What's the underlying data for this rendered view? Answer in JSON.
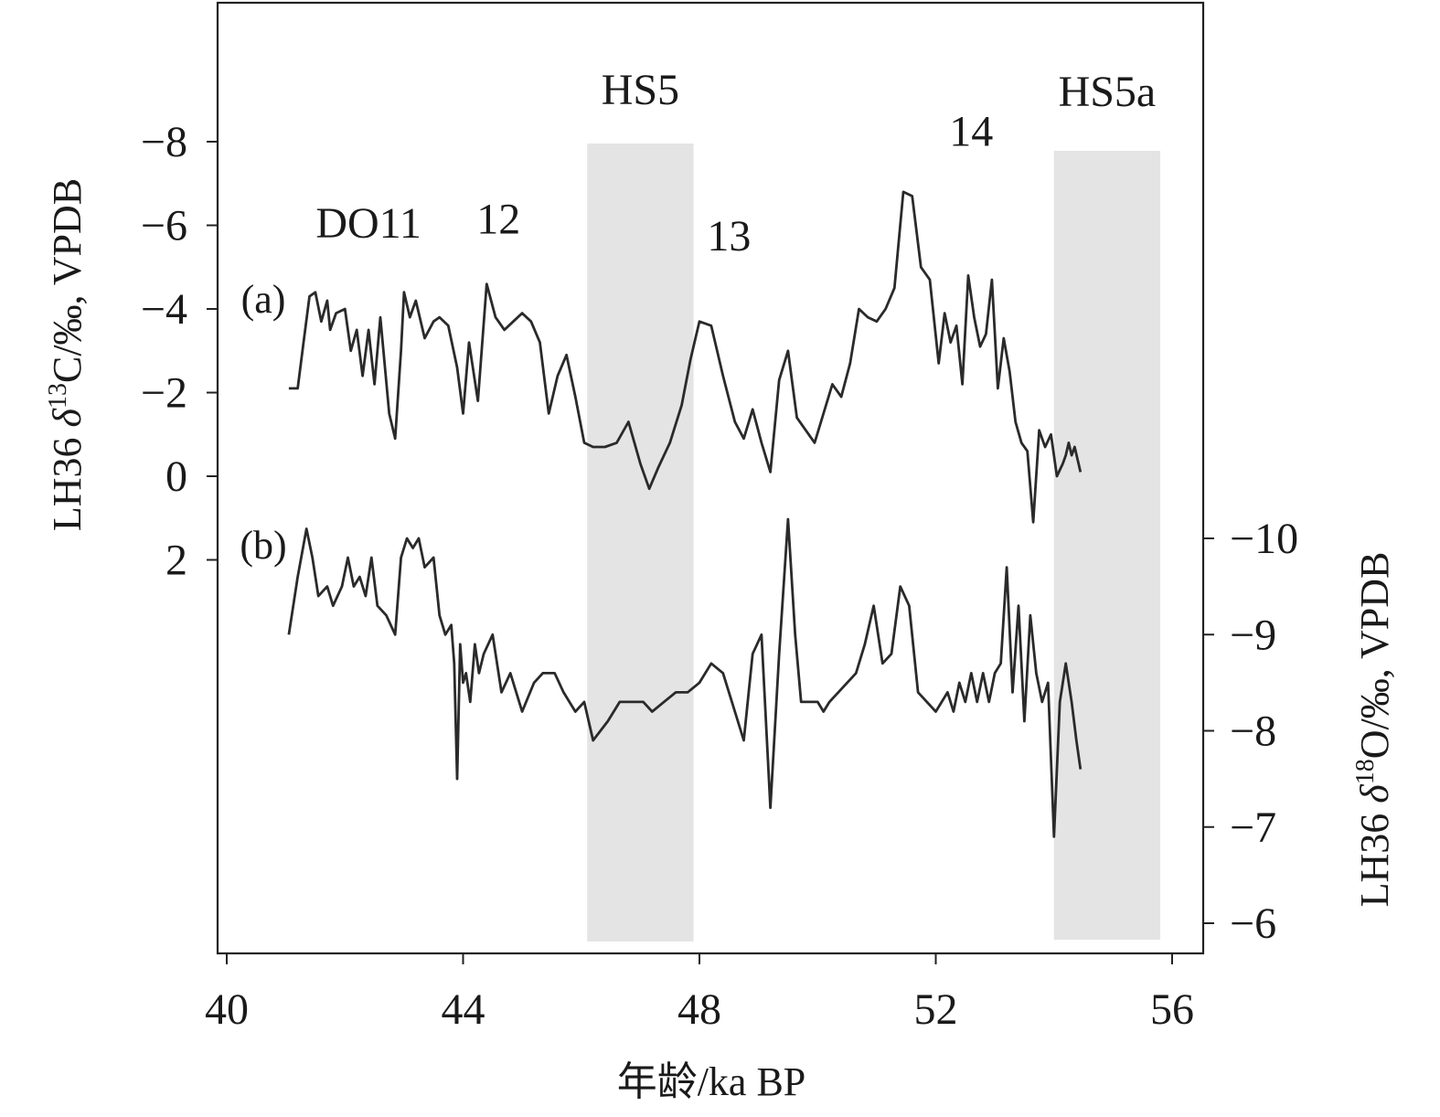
{
  "chart_data": {
    "type": "line",
    "xlabel": "年龄/ka BP",
    "xlim": [
      40,
      56
    ],
    "x_ticks": [
      40,
      44,
      48,
      52,
      56
    ],
    "x_tick_labels": [
      "40",
      "44",
      "48",
      "52",
      "56"
    ],
    "left_axis": {
      "label_parts": [
        "LH36 ",
        "δ",
        "13",
        "C/‰, VPDB"
      ],
      "inverted": true,
      "ticks": [
        -8,
        -6,
        -4,
        -2,
        0,
        2
      ],
      "tick_labels": [
        "−8",
        "−6",
        "−4",
        "−2",
        "0",
        "2"
      ]
    },
    "right_axis": {
      "label_parts": [
        "LH36 ",
        "δ",
        "18",
        "O/‰, VPDB"
      ],
      "inverted": true,
      "ticks": [
        -10,
        -9,
        -8,
        -7,
        -6
      ],
      "tick_labels": [
        "−10",
        "−9",
        "−8",
        "−7",
        "−6"
      ]
    },
    "shaded_regions": [
      {
        "label": "HS5",
        "x_start": 46.1,
        "x_end": 47.9
      },
      {
        "label": "HS5a",
        "x_start": 54.0,
        "x_end": 55.8
      }
    ],
    "event_labels": [
      {
        "label": "DO11",
        "x": 42.4,
        "y": -5.7
      },
      {
        "label": "12",
        "x": 44.6,
        "y": -5.8
      },
      {
        "label": "13",
        "x": 48.5,
        "y": -5.4
      },
      {
        "label": "14",
        "x": 52.6,
        "y": -7.9
      }
    ],
    "series": [
      {
        "name": "(a)",
        "axis": "left",
        "x": [
          41.05,
          41.2,
          41.3,
          41.4,
          41.5,
          41.6,
          41.7,
          41.75,
          41.85,
          42.0,
          42.1,
          42.2,
          42.3,
          42.4,
          42.5,
          42.6,
          42.75,
          42.85,
          42.95,
          43.0,
          43.1,
          43.2,
          43.35,
          43.5,
          43.6,
          43.75,
          43.9,
          44.0,
          44.1,
          44.25,
          44.4,
          44.55,
          44.7,
          44.85,
          45.0,
          45.15,
          45.3,
          45.45,
          45.6,
          45.75,
          45.9,
          46.05,
          46.2,
          46.4,
          46.6,
          46.8,
          47.0,
          47.15,
          47.3,
          47.5,
          47.7,
          47.85,
          48.0,
          48.2,
          48.4,
          48.6,
          48.75,
          48.9,
          49.05,
          49.2,
          49.35,
          49.5,
          49.65,
          49.8,
          49.95,
          50.1,
          50.25,
          50.4,
          50.55,
          50.7,
          50.85,
          51.0,
          51.15,
          51.3,
          51.45,
          51.6,
          51.75,
          51.9,
          52.05,
          52.15,
          52.25,
          52.35,
          52.45,
          52.55,
          52.65,
          52.75,
          52.85,
          52.95,
          53.05,
          53.15,
          53.25,
          53.35,
          53.45,
          53.55,
          53.65,
          53.75,
          53.85,
          53.95,
          54.05,
          54.15,
          54.2,
          54.25,
          54.3,
          54.35,
          54.4,
          54.45
        ],
        "y": [
          -2.1,
          -2.1,
          -3.2,
          -4.3,
          -4.4,
          -3.7,
          -4.2,
          -3.5,
          -3.9,
          -4.0,
          -3.0,
          -3.5,
          -2.4,
          -3.5,
          -2.2,
          -3.8,
          -1.5,
          -0.9,
          -3.0,
          -4.4,
          -3.8,
          -4.2,
          -3.3,
          -3.7,
          -3.8,
          -3.6,
          -2.6,
          -1.5,
          -3.2,
          -1.8,
          -4.6,
          -3.8,
          -3.5,
          -3.7,
          -3.9,
          -3.7,
          -3.2,
          -1.5,
          -2.4,
          -2.9,
          -1.9,
          -0.8,
          -0.7,
          -0.7,
          -0.8,
          -1.3,
          -0.3,
          0.3,
          -0.2,
          -0.8,
          -1.7,
          -2.8,
          -3.7,
          -3.6,
          -2.4,
          -1.3,
          -0.9,
          -1.6,
          -0.8,
          -0.1,
          -2.3,
          -3.0,
          -1.4,
          -1.1,
          -0.8,
          -1.5,
          -2.2,
          -1.9,
          -2.7,
          -4.0,
          -3.8,
          -3.7,
          -4.0,
          -4.5,
          -6.8,
          -6.7,
          -5.0,
          -4.7,
          -2.7,
          -3.9,
          -3.2,
          -3.6,
          -2.2,
          -4.8,
          -3.8,
          -3.1,
          -3.4,
          -4.7,
          -2.1,
          -3.3,
          -2.5,
          -1.3,
          -0.8,
          -0.6,
          1.1,
          -1.1,
          -0.7,
          -1.0,
          0.0,
          -0.3,
          -0.5,
          -0.8,
          -0.5,
          -0.7,
          -0.4,
          -0.1
        ]
      },
      {
        "name": "(b)",
        "axis": "right",
        "x": [
          41.05,
          41.2,
          41.35,
          41.45,
          41.55,
          41.7,
          41.8,
          41.95,
          42.05,
          42.15,
          42.25,
          42.35,
          42.45,
          42.55,
          42.7,
          42.85,
          42.95,
          43.05,
          43.15,
          43.25,
          43.35,
          43.5,
          43.6,
          43.7,
          43.8,
          43.85,
          43.9,
          43.95,
          44.0,
          44.05,
          44.12,
          44.2,
          44.27,
          44.35,
          44.5,
          44.65,
          44.8,
          45.0,
          45.2,
          45.35,
          45.55,
          45.7,
          45.9,
          46.05,
          46.2,
          46.45,
          46.65,
          46.85,
          47.05,
          47.2,
          47.4,
          47.6,
          47.8,
          48.0,
          48.2,
          48.4,
          48.6,
          48.75,
          48.9,
          49.05,
          49.2,
          49.35,
          49.5,
          49.62,
          49.72,
          49.85,
          50.0,
          50.1,
          50.2,
          50.35,
          50.5,
          50.65,
          50.8,
          50.95,
          51.1,
          51.25,
          51.4,
          51.55,
          51.7,
          51.85,
          52.0,
          52.1,
          52.2,
          52.3,
          52.4,
          52.5,
          52.6,
          52.7,
          52.8,
          52.9,
          53.0,
          53.1,
          53.2,
          53.3,
          53.4,
          53.5,
          53.6,
          53.7,
          53.8,
          53.9,
          54.0,
          54.1,
          54.2,
          54.3,
          54.38,
          54.45
        ],
        "y": [
          -9.0,
          -9.6,
          -10.1,
          -9.8,
          -9.4,
          -9.5,
          -9.3,
          -9.5,
          -9.8,
          -9.5,
          -9.6,
          -9.4,
          -9.8,
          -9.3,
          -9.2,
          -9.0,
          -9.8,
          -10.0,
          -9.9,
          -10.0,
          -9.7,
          -9.8,
          -9.2,
          -9.0,
          -9.1,
          -8.7,
          -7.5,
          -8.9,
          -8.5,
          -8.6,
          -8.3,
          -8.9,
          -8.6,
          -8.8,
          -9.0,
          -8.4,
          -8.6,
          -8.2,
          -8.5,
          -8.6,
          -8.6,
          -8.4,
          -8.2,
          -8.3,
          -7.9,
          -8.1,
          -8.3,
          -8.3,
          -8.3,
          -8.2,
          -8.3,
          -8.4,
          -8.4,
          -8.5,
          -8.7,
          -8.6,
          -8.2,
          -7.9,
          -8.8,
          -9.0,
          -7.2,
          -8.8,
          -10.2,
          -9.0,
          -8.3,
          -8.3,
          -8.3,
          -8.2,
          -8.3,
          -8.4,
          -8.5,
          -8.6,
          -8.9,
          -9.3,
          -8.7,
          -8.8,
          -9.5,
          -9.3,
          -8.4,
          -8.3,
          -8.2,
          -8.3,
          -8.4,
          -8.2,
          -8.5,
          -8.3,
          -8.6,
          -8.3,
          -8.6,
          -8.3,
          -8.6,
          -8.7,
          -9.7,
          -8.4,
          -9.3,
          -8.1,
          -9.2,
          -8.6,
          -8.3,
          -8.5,
          -6.9,
          -8.3,
          -8.7,
          -8.3,
          -7.9,
          -7.6
        ]
      }
    ]
  }
}
